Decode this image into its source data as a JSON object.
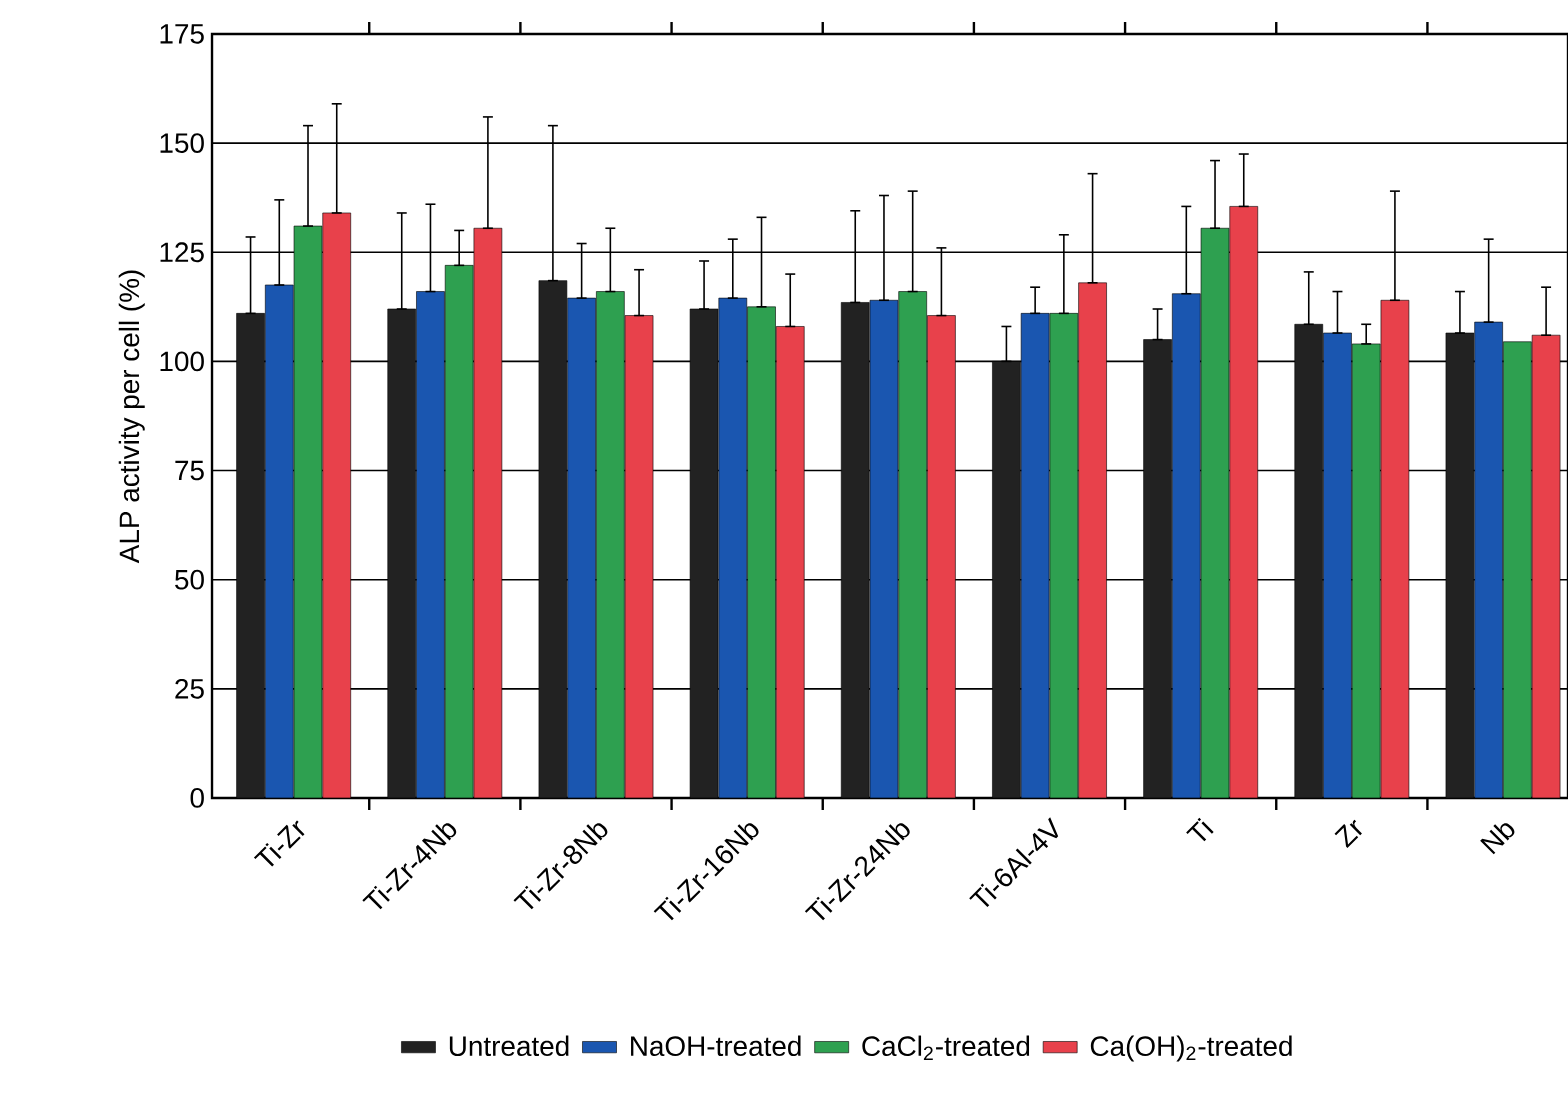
{
  "chart_data": {
    "type": "bar",
    "ylabel": "ALP activity per cell (%)",
    "categories": [
      "Ti-Zr",
      "Ti-Zr-4Nb",
      "Ti-Zr-8Nb",
      "Ti-Zr-16Nb",
      "Ti-Zr-24Nb",
      "Ti-6Al-4V",
      "Ti",
      "Zr",
      "Nb"
    ],
    "series": [
      {
        "name": "Untreated",
        "color": "#222222",
        "values": [
          111,
          112,
          118.5,
          112,
          113.5,
          100,
          105,
          108.5,
          106.5
        ],
        "errors": [
          [
            111,
            128.5
          ],
          [
            112,
            134
          ],
          [
            118.5,
            154
          ],
          [
            112,
            123
          ],
          [
            113.5,
            134.5
          ],
          [
            100,
            108
          ],
          [
            105,
            112
          ],
          [
            108.5,
            120.5
          ],
          [
            106.5,
            116
          ]
        ]
      },
      {
        "name": "NaOH-treated",
        "color": "#1a56b0",
        "values": [
          117.5,
          116,
          114.5,
          114.5,
          114,
          111,
          115.5,
          106.5,
          109
        ],
        "errors": [
          [
            117.5,
            137
          ],
          [
            116,
            136
          ],
          [
            114.5,
            127
          ],
          [
            114.5,
            128
          ],
          [
            114,
            138
          ],
          [
            111,
            117
          ],
          [
            115.5,
            135.5
          ],
          [
            106.5,
            116
          ],
          [
            109,
            128
          ]
        ]
      },
      {
        "name": "CaCl$_{2}$-treated",
        "color": "#2ea050",
        "values": [
          131,
          122,
          116,
          112.5,
          116,
          111,
          130.5,
          104,
          104.5
        ],
        "errors": [
          [
            131,
            154
          ],
          [
            122,
            130
          ],
          [
            116,
            130.5
          ],
          [
            112.5,
            133
          ],
          [
            116,
            139
          ],
          [
            111,
            129
          ],
          [
            130.5,
            146
          ],
          [
            104,
            108.5
          ],
          null
        ]
      },
      {
        "name": "Ca(OH)$_{2}$-treated",
        "color": "#e8414b",
        "values": [
          134,
          130.5,
          110.5,
          108,
          110.5,
          118,
          135.5,
          114,
          106
        ],
        "errors": [
          [
            134,
            159
          ],
          [
            130.5,
            156
          ],
          [
            110.5,
            121
          ],
          [
            108,
            120
          ],
          [
            110.5,
            126
          ],
          [
            118,
            143
          ],
          [
            135.5,
            147.5
          ],
          [
            114,
            139
          ],
          [
            106,
            117
          ]
        ]
      }
    ],
    "ylim": [
      0,
      175
    ],
    "yticks": [
      0,
      25,
      50,
      75,
      100,
      125,
      150,
      175
    ],
    "grid": "y",
    "legend": "bottom"
  }
}
